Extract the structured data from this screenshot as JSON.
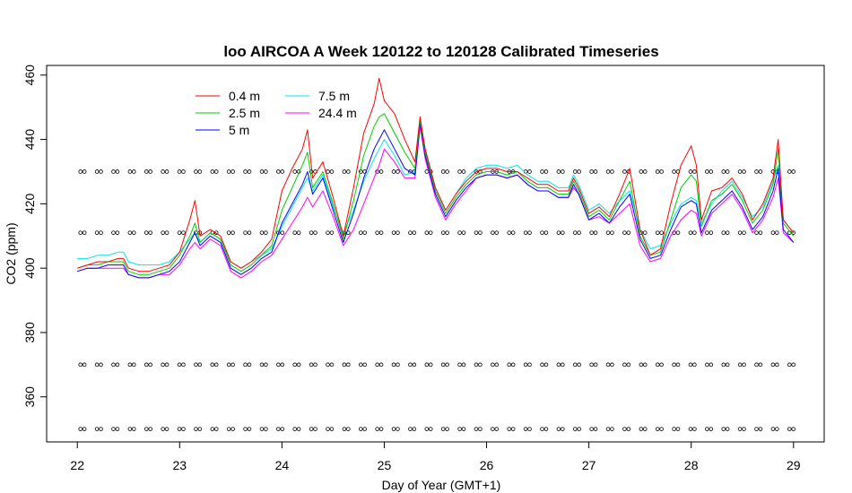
{
  "chart_data": {
    "type": "line",
    "title": "loo AIRCOA A  Week 120122 to 120128  Calibrated Timeseries",
    "xlabel": "Day of Year (GMT+1)",
    "ylabel": "CO2 (ppm)",
    "xlim": [
      21.7,
      29.3
    ],
    "ylim": [
      346,
      463
    ],
    "x_ticks": [
      22,
      23,
      24,
      25,
      26,
      27,
      28,
      29
    ],
    "y_ticks": [
      360,
      380,
      400,
      420,
      440,
      460
    ],
    "legend_position": "top-left",
    "grid": false,
    "colors": {
      "0.4 m": "#ff0000",
      "2.5 m": "#00cc00",
      "5 m": "#0000ff",
      "7.5 m": "#00e5ee",
      "24.4 m": "#ff00ff"
    },
    "series": [
      {
        "name": "0.4 m",
        "x": [
          22.0,
          22.1,
          22.2,
          22.3,
          22.4,
          22.45,
          22.5,
          22.6,
          22.7,
          22.8,
          22.9,
          23.0,
          23.1,
          23.15,
          23.2,
          23.3,
          23.4,
          23.5,
          23.6,
          23.7,
          23.8,
          23.9,
          24.0,
          24.1,
          24.2,
          24.25,
          24.3,
          24.4,
          24.5,
          24.6,
          24.7,
          24.8,
          24.9,
          24.95,
          25.0,
          25.1,
          25.2,
          25.3,
          25.35,
          25.4,
          25.5,
          25.6,
          25.7,
          25.8,
          25.9,
          26.0,
          26.1,
          26.2,
          26.3,
          26.4,
          26.5,
          26.6,
          26.7,
          26.8,
          26.85,
          26.9,
          27.0,
          27.1,
          27.2,
          27.3,
          27.4,
          27.5,
          27.6,
          27.7,
          27.8,
          27.9,
          28.0,
          28.05,
          28.1,
          28.2,
          28.3,
          28.4,
          28.5,
          28.6,
          28.7,
          28.8,
          28.85,
          28.9,
          29.0
        ],
        "y": [
          400,
          401,
          402,
          402,
          403,
          403,
          400,
          399,
          399,
          400,
          401,
          405,
          415,
          421,
          410,
          412,
          410,
          402,
          400,
          402,
          405,
          409,
          424,
          431,
          437,
          443,
          428,
          433,
          422,
          410,
          425,
          442,
          451,
          459,
          452,
          448,
          440,
          433,
          447,
          437,
          425,
          418,
          423,
          427,
          430,
          431,
          431,
          430,
          430,
          428,
          426,
          426,
          424,
          424,
          428,
          425,
          417,
          419,
          416,
          423,
          431,
          412,
          404,
          406,
          420,
          432,
          438,
          432,
          415,
          424,
          425,
          428,
          423,
          415,
          420,
          428,
          440,
          415,
          411
        ]
      },
      {
        "name": "2.5 m",
        "x": [
          22.0,
          22.1,
          22.2,
          22.3,
          22.4,
          22.45,
          22.5,
          22.6,
          22.7,
          22.8,
          22.9,
          23.0,
          23.1,
          23.15,
          23.2,
          23.3,
          23.4,
          23.5,
          23.6,
          23.7,
          23.8,
          23.9,
          24.0,
          24.1,
          24.2,
          24.25,
          24.3,
          24.4,
          24.5,
          24.6,
          24.7,
          24.8,
          24.9,
          24.95,
          25.0,
          25.1,
          25.2,
          25.3,
          25.35,
          25.4,
          25.5,
          25.6,
          25.7,
          25.8,
          25.9,
          26.0,
          26.1,
          26.2,
          26.3,
          26.4,
          26.5,
          26.6,
          26.7,
          26.8,
          26.85,
          26.9,
          27.0,
          27.1,
          27.2,
          27.3,
          27.4,
          27.5,
          27.6,
          27.7,
          27.8,
          27.9,
          28.0,
          28.05,
          28.1,
          28.2,
          28.3,
          28.4,
          28.5,
          28.6,
          28.7,
          28.8,
          28.85,
          28.9,
          29.0
        ],
        "y": [
          400,
          401,
          401,
          402,
          402,
          402,
          399,
          398,
          398,
          399,
          400,
          404,
          410,
          414,
          408,
          411,
          409,
          401,
          399,
          401,
          404,
          407,
          418,
          425,
          432,
          436,
          425,
          430,
          420,
          409,
          421,
          435,
          444,
          447,
          448,
          442,
          436,
          431,
          446,
          436,
          424,
          417,
          422,
          426,
          429,
          430,
          430,
          429,
          430,
          427,
          425,
          425,
          423,
          423,
          427,
          424,
          416,
          418,
          415,
          421,
          427,
          410,
          404,
          405,
          415,
          425,
          429,
          427,
          413,
          421,
          423,
          426,
          421,
          414,
          418,
          426,
          437,
          414,
          410
        ]
      },
      {
        "name": "5 m",
        "x": [
          22.0,
          22.1,
          22.2,
          22.3,
          22.4,
          22.45,
          22.5,
          22.6,
          22.7,
          22.8,
          22.9,
          23.0,
          23.1,
          23.15,
          23.2,
          23.3,
          23.4,
          23.5,
          23.6,
          23.7,
          23.8,
          23.9,
          24.0,
          24.1,
          24.2,
          24.25,
          24.3,
          24.4,
          24.5,
          24.6,
          24.7,
          24.8,
          24.9,
          24.95,
          25.0,
          25.1,
          25.2,
          25.3,
          25.35,
          25.4,
          25.5,
          25.6,
          25.7,
          25.8,
          25.9,
          26.0,
          26.1,
          26.2,
          26.3,
          26.4,
          26.5,
          26.6,
          26.7,
          26.8,
          26.85,
          26.9,
          27.0,
          27.1,
          27.2,
          27.3,
          27.4,
          27.5,
          27.6,
          27.7,
          27.8,
          27.9,
          28.0,
          28.05,
          28.1,
          28.2,
          28.3,
          28.4,
          28.5,
          28.6,
          28.7,
          28.8,
          28.85,
          28.9,
          29.0
        ],
        "y": [
          399,
          400,
          400,
          401,
          401,
          401,
          398,
          397,
          397,
          398,
          399,
          402,
          408,
          411,
          407,
          410,
          408,
          400,
          398,
          400,
          403,
          405,
          414,
          420,
          426,
          430,
          423,
          428,
          418,
          408,
          417,
          428,
          437,
          440,
          443,
          437,
          431,
          429,
          445,
          435,
          423,
          416,
          421,
          425,
          428,
          429,
          429,
          428,
          429,
          426,
          424,
          424,
          422,
          422,
          426,
          423,
          415,
          417,
          414,
          419,
          423,
          409,
          403,
          404,
          412,
          419,
          421,
          420,
          411,
          418,
          421,
          424,
          419,
          412,
          416,
          424,
          431,
          412,
          408
        ]
      },
      {
        "name": "7.5 m",
        "x": [
          22.0,
          22.1,
          22.2,
          22.3,
          22.4,
          22.45,
          22.5,
          22.6,
          22.7,
          22.8,
          22.9,
          23.0,
          23.1,
          23.15,
          23.2,
          23.3,
          23.4,
          23.5,
          23.6,
          23.7,
          23.8,
          23.9,
          24.0,
          24.1,
          24.2,
          24.25,
          24.3,
          24.4,
          24.5,
          24.6,
          24.7,
          24.8,
          24.9,
          24.95,
          25.0,
          25.1,
          25.2,
          25.3,
          25.35,
          25.4,
          25.5,
          25.6,
          25.7,
          25.8,
          25.9,
          26.0,
          26.1,
          26.2,
          26.3,
          26.4,
          26.5,
          26.6,
          26.7,
          26.8,
          26.85,
          26.9,
          27.0,
          27.1,
          27.2,
          27.3,
          27.4,
          27.5,
          27.6,
          27.7,
          27.8,
          27.9,
          28.0,
          28.05,
          28.1,
          28.2,
          28.3,
          28.4,
          28.5,
          28.6,
          28.7,
          28.8,
          28.85,
          28.9,
          29.0
        ],
        "y": [
          403,
          403,
          404,
          404,
          405,
          405,
          402,
          401,
          401,
          401,
          402,
          405,
          409,
          411,
          408,
          411,
          409,
          402,
          400,
          402,
          404,
          406,
          413,
          419,
          425,
          428,
          424,
          429,
          419,
          411,
          418,
          427,
          434,
          437,
          440,
          435,
          429,
          430,
          446,
          437,
          425,
          418,
          423,
          428,
          431,
          432,
          432,
          431,
          432,
          429,
          427,
          427,
          425,
          425,
          429,
          426,
          418,
          420,
          417,
          421,
          424,
          412,
          406,
          407,
          414,
          420,
          422,
          421,
          414,
          420,
          424,
          427,
          422,
          416,
          419,
          427,
          432,
          415,
          411
        ]
      },
      {
        "name": "24.4 m",
        "x": [
          22.0,
          22.1,
          22.2,
          22.3,
          22.4,
          22.45,
          22.5,
          22.6,
          22.7,
          22.8,
          22.9,
          23.0,
          23.1,
          23.15,
          23.2,
          23.3,
          23.4,
          23.5,
          23.6,
          23.7,
          23.8,
          23.9,
          24.0,
          24.1,
          24.2,
          24.25,
          24.3,
          24.4,
          24.5,
          24.6,
          24.7,
          24.8,
          24.9,
          24.95,
          25.0,
          25.1,
          25.2,
          25.3,
          25.35,
          25.4,
          25.5,
          25.6,
          25.7,
          25.8,
          25.9,
          26.0,
          26.1,
          26.2,
          26.3,
          26.4,
          26.5,
          26.6,
          26.7,
          26.8,
          26.85,
          26.9,
          27.0,
          27.1,
          27.2,
          27.3,
          27.4,
          27.5,
          27.6,
          27.7,
          27.8,
          27.9,
          28.0,
          28.05,
          28.1,
          28.2,
          28.3,
          28.4,
          28.5,
          28.6,
          28.7,
          28.8,
          28.85,
          28.9,
          29.0
        ],
        "y": [
          399,
          400,
          400,
          400,
          400,
          400,
          398,
          397,
          397,
          398,
          398,
          401,
          406,
          408,
          406,
          409,
          407,
          399,
          397,
          399,
          402,
          404,
          409,
          414,
          419,
          422,
          419,
          424,
          416,
          407,
          412,
          420,
          428,
          432,
          437,
          433,
          428,
          428,
          444,
          434,
          422,
          415,
          420,
          424,
          428,
          429,
          429,
          428,
          429,
          426,
          424,
          424,
          422,
          422,
          425,
          423,
          415,
          416,
          414,
          417,
          420,
          407,
          402,
          403,
          410,
          415,
          418,
          417,
          410,
          417,
          420,
          423,
          418,
          411,
          415,
          422,
          428,
          411,
          408
        ]
      }
    ],
    "reference_markers": {
      "levels": [
        350,
        370,
        411,
        430
      ],
      "x_start": 22.05,
      "x_end": 28.98,
      "count_per_level": 44
    }
  }
}
